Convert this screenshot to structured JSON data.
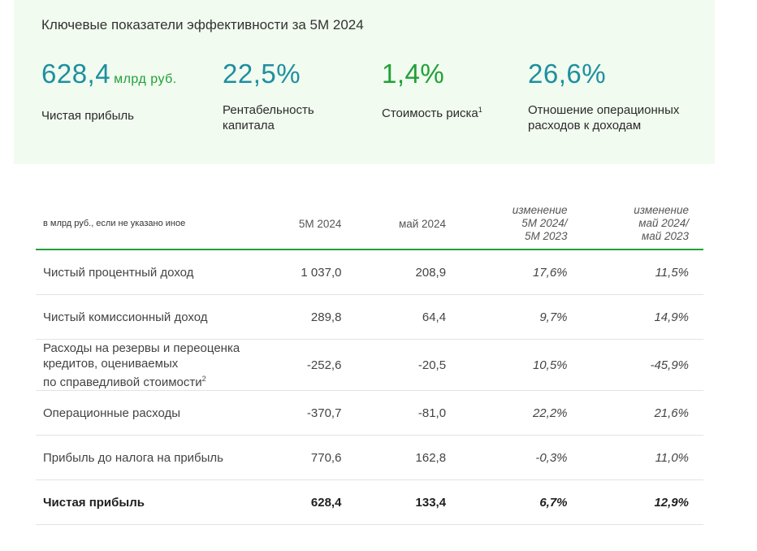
{
  "kpi": {
    "title": "Ключевые показатели эффективности за 5М 2024",
    "items": [
      {
        "value": "628,4",
        "unit": "млрд руб.",
        "label": "Чистая прибыль",
        "sup": ""
      },
      {
        "value": "22,5%",
        "unit": "",
        "label_line1": "Рентабельность",
        "label_line2": "капитала"
      },
      {
        "value": "1,4%",
        "unit": "",
        "label": "Стоимость риска",
        "sup": "1"
      },
      {
        "value": "26,6%",
        "unit": "",
        "label_line1": "Отношение операционных",
        "label_line2": "расходов к доходам"
      }
    ]
  },
  "table": {
    "headers": {
      "label": "в млрд руб., если не указано иное",
      "col1": "5М 2024",
      "col2": "май 2024",
      "col3_l1": "изменение",
      "col3_l2": "5М 2024/",
      "col3_l3": "5М 2023",
      "col4_l1": "изменение",
      "col4_l2": "май 2024/",
      "col4_l3": "май 2023"
    },
    "rows": [
      {
        "label": "Чистый процентный доход",
        "v1": "1 037,0",
        "v2": "208,9",
        "c1": "17,6%",
        "c2": "11,5%"
      },
      {
        "label": "Чистый комиссионный доход",
        "v1": "289,8",
        "v2": "64,4",
        "c1": "9,7%",
        "c2": "14,9%"
      },
      {
        "label_l1": "Расходы на резервы и переоценка",
        "label_l2": "кредитов, оцениваемых",
        "label_l3": "по справедливой стоимости",
        "sup": "2",
        "v1": "-252,6",
        "v2": "-20,5",
        "c1": "10,5%",
        "c2": "-45,9%"
      },
      {
        "label": "Операционные расходы",
        "v1": "-370,7",
        "v2": "-81,0",
        "c1": "22,2%",
        "c2": "21,6%"
      },
      {
        "label": "Прибыль до налога на прибыль",
        "v1": "770,6",
        "v2": "162,8",
        "c1": "-0,3%",
        "c2": "11,0%"
      },
      {
        "label": "Чистая прибыль",
        "v1": "628,4",
        "v2": "133,4",
        "c1": "6,7%",
        "c2": "12,9%"
      }
    ]
  }
}
